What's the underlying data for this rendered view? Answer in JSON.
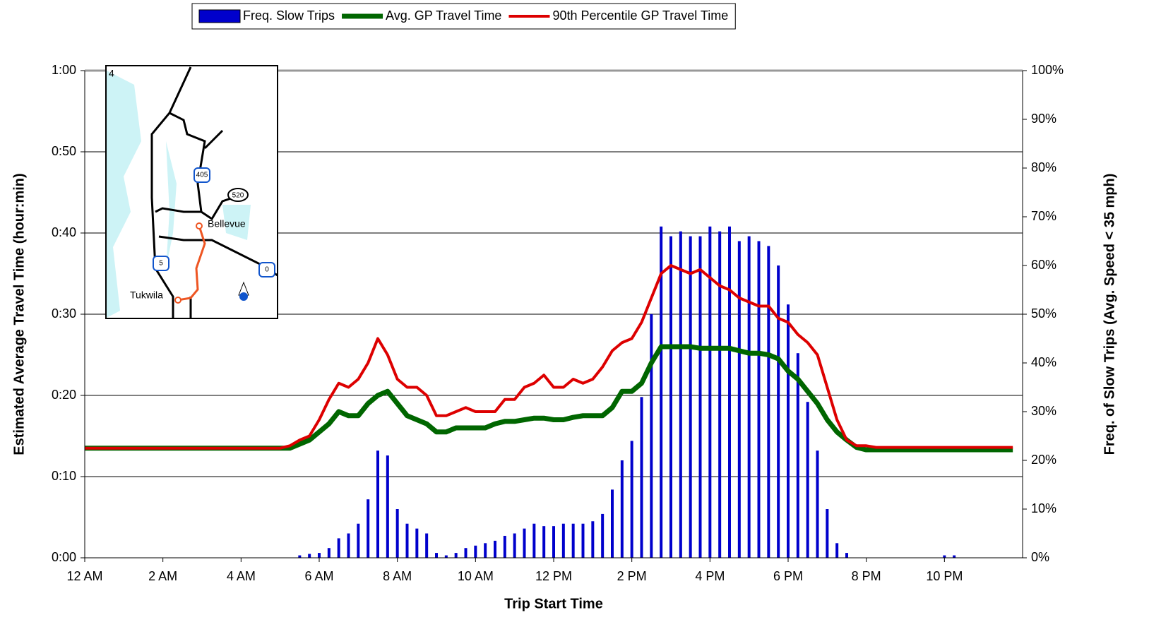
{
  "chart_data": {
    "type": "combo",
    "x_label": "Trip Start Time",
    "y_label": "Estimated Average Travel Time (hour:min)",
    "y2_label": "Freq. of Slow Trips (Avg. Speed < 35 mph)",
    "legend": "top",
    "grid": true,
    "xlim": [
      0,
      24
    ],
    "xticks": [
      {
        "value": 0,
        "label": "12 AM"
      },
      {
        "value": 2,
        "label": "2 AM"
      },
      {
        "value": 4,
        "label": "4 AM"
      },
      {
        "value": 6,
        "label": "6 AM"
      },
      {
        "value": 8,
        "label": "8 AM"
      },
      {
        "value": 10,
        "label": "10 AM"
      },
      {
        "value": 12,
        "label": "12 PM"
      },
      {
        "value": 14,
        "label": "2 PM"
      },
      {
        "value": 16,
        "label": "4 PM"
      },
      {
        "value": 18,
        "label": "6 PM"
      },
      {
        "value": 20,
        "label": "8 PM"
      },
      {
        "value": 22,
        "label": "10 PM"
      }
    ],
    "ylim": [
      0,
      60
    ],
    "yticks": [
      {
        "value": 0,
        "label": "0:00"
      },
      {
        "value": 10,
        "label": "0:10"
      },
      {
        "value": 20,
        "label": "0:20"
      },
      {
        "value": 30,
        "label": "0:30"
      },
      {
        "value": 40,
        "label": "0:40"
      },
      {
        "value": 50,
        "label": "0:50"
      },
      {
        "value": 60,
        "label": "1:00"
      }
    ],
    "y2lim": [
      0,
      100
    ],
    "y2ticks": [
      {
        "value": 0,
        "label": "0%"
      },
      {
        "value": 10,
        "label": "10%"
      },
      {
        "value": 20,
        "label": "20%"
      },
      {
        "value": 30,
        "label": "30%"
      },
      {
        "value": 40,
        "label": "40%"
      },
      {
        "value": 50,
        "label": "50%"
      },
      {
        "value": 60,
        "label": "60%"
      },
      {
        "value": 70,
        "label": "70%"
      },
      {
        "value": 80,
        "label": "80%"
      },
      {
        "value": 90,
        "label": "90%"
      },
      {
        "value": 100,
        "label": "100%"
      }
    ],
    "x": [
      0,
      0.25,
      0.5,
      0.75,
      1,
      1.25,
      1.5,
      1.75,
      2,
      2.25,
      2.5,
      2.75,
      3,
      3.25,
      3.5,
      3.75,
      4,
      4.25,
      4.5,
      4.75,
      5,
      5.25,
      5.5,
      5.75,
      6,
      6.25,
      6.5,
      6.75,
      7,
      7.25,
      7.5,
      7.75,
      8,
      8.25,
      8.5,
      8.75,
      9,
      9.25,
      9.5,
      9.75,
      10,
      10.25,
      10.5,
      10.75,
      11,
      11.25,
      11.5,
      11.75,
      12,
      12.25,
      12.5,
      12.75,
      13,
      13.25,
      13.5,
      13.75,
      14,
      14.25,
      14.5,
      14.75,
      15,
      15.25,
      15.5,
      15.75,
      16,
      16.25,
      16.5,
      16.75,
      17,
      17.25,
      17.5,
      17.75,
      18,
      18.25,
      18.5,
      18.75,
      19,
      19.25,
      19.5,
      19.75,
      20,
      20.25,
      20.5,
      20.75,
      21,
      21.25,
      21.5,
      21.75,
      22,
      22.25,
      22.5,
      22.75,
      23,
      23.25,
      23.5,
      23.75
    ],
    "series": [
      {
        "name": "Freq. Slow Trips",
        "type": "bar",
        "axis": "y2",
        "color": "#0000cc",
        "values": [
          0,
          0,
          0,
          0,
          0,
          0,
          0,
          0,
          0,
          0,
          0,
          0,
          0,
          0,
          0,
          0,
          0,
          0,
          0,
          0,
          0,
          0,
          0.5,
          0.8,
          1,
          2,
          4,
          5,
          7,
          12,
          22,
          21,
          10,
          7,
          6,
          5,
          1,
          0.5,
          1,
          2,
          2.5,
          3,
          3.5,
          4.5,
          5,
          6,
          7,
          6.5,
          6.5,
          7,
          7,
          7,
          7.5,
          9,
          14,
          20,
          24,
          33,
          50,
          68,
          66,
          67,
          66,
          66,
          68,
          67,
          68,
          65,
          66,
          65,
          64,
          60,
          52,
          42,
          32,
          22,
          10,
          3,
          1,
          0,
          0,
          0,
          0,
          0,
          0,
          0,
          0,
          0,
          0.5,
          0.5,
          0,
          0,
          0,
          0,
          0,
          0
        ]
      },
      {
        "name": "Avg. GP Travel Time",
        "type": "line",
        "color": "#006600",
        "values": [
          13.5,
          13.5,
          13.5,
          13.5,
          13.5,
          13.5,
          13.5,
          13.5,
          13.5,
          13.5,
          13.5,
          13.5,
          13.5,
          13.5,
          13.5,
          13.5,
          13.5,
          13.5,
          13.5,
          13.5,
          13.5,
          13.5,
          14,
          14.5,
          15.5,
          16.5,
          18,
          17.5,
          17.5,
          19,
          20,
          20.5,
          19,
          17.5,
          17,
          16.5,
          15.5,
          15.5,
          16,
          16,
          16,
          16,
          16.5,
          16.8,
          16.8,
          17,
          17.2,
          17.2,
          17,
          17,
          17.3,
          17.5,
          17.5,
          17.5,
          18.5,
          20.5,
          20.5,
          21.5,
          24,
          26,
          26,
          26,
          26,
          25.8,
          25.8,
          25.8,
          25.8,
          25.5,
          25.2,
          25.2,
          25,
          24.5,
          23,
          22,
          20.5,
          19,
          17,
          15.5,
          14.5,
          13.6,
          13.3,
          13.3,
          13.3,
          13.3,
          13.3,
          13.3,
          13.3,
          13.3,
          13.3,
          13.3,
          13.3,
          13.3,
          13.3,
          13.3,
          13.3,
          13.3
        ]
      },
      {
        "name": "90th Percentile GP Travel Time",
        "type": "line",
        "color": "#dd0000",
        "values": [
          13.5,
          13.5,
          13.5,
          13.5,
          13.5,
          13.5,
          13.5,
          13.5,
          13.5,
          13.5,
          13.5,
          13.5,
          13.5,
          13.5,
          13.5,
          13.5,
          13.5,
          13.5,
          13.5,
          13.5,
          13.5,
          13.8,
          14.5,
          15,
          17,
          19.5,
          21.5,
          21,
          22,
          24,
          27,
          25,
          22,
          21,
          21,
          20,
          17.5,
          17.5,
          18,
          18.5,
          18,
          18,
          18,
          19.5,
          19.5,
          21,
          21.5,
          22.5,
          21,
          21,
          22,
          21.5,
          22,
          23.5,
          25.5,
          26.5,
          27,
          29,
          32,
          35,
          36,
          35.5,
          35,
          35.5,
          34.5,
          33.5,
          33,
          32,
          31.5,
          31,
          31,
          29.5,
          29,
          27.5,
          26.5,
          25,
          21,
          17,
          14.5,
          13.8,
          13.8,
          13.6,
          13.6,
          13.6,
          13.6,
          13.6,
          13.6,
          13.6,
          13.6,
          13.6,
          13.6,
          13.6,
          13.6,
          13.6,
          13.6,
          13.6
        ]
      }
    ]
  },
  "inset_map": {
    "labels": [
      "4",
      "405",
      "520",
      "5",
      "0",
      "Bellevue",
      "Tukwila"
    ]
  }
}
